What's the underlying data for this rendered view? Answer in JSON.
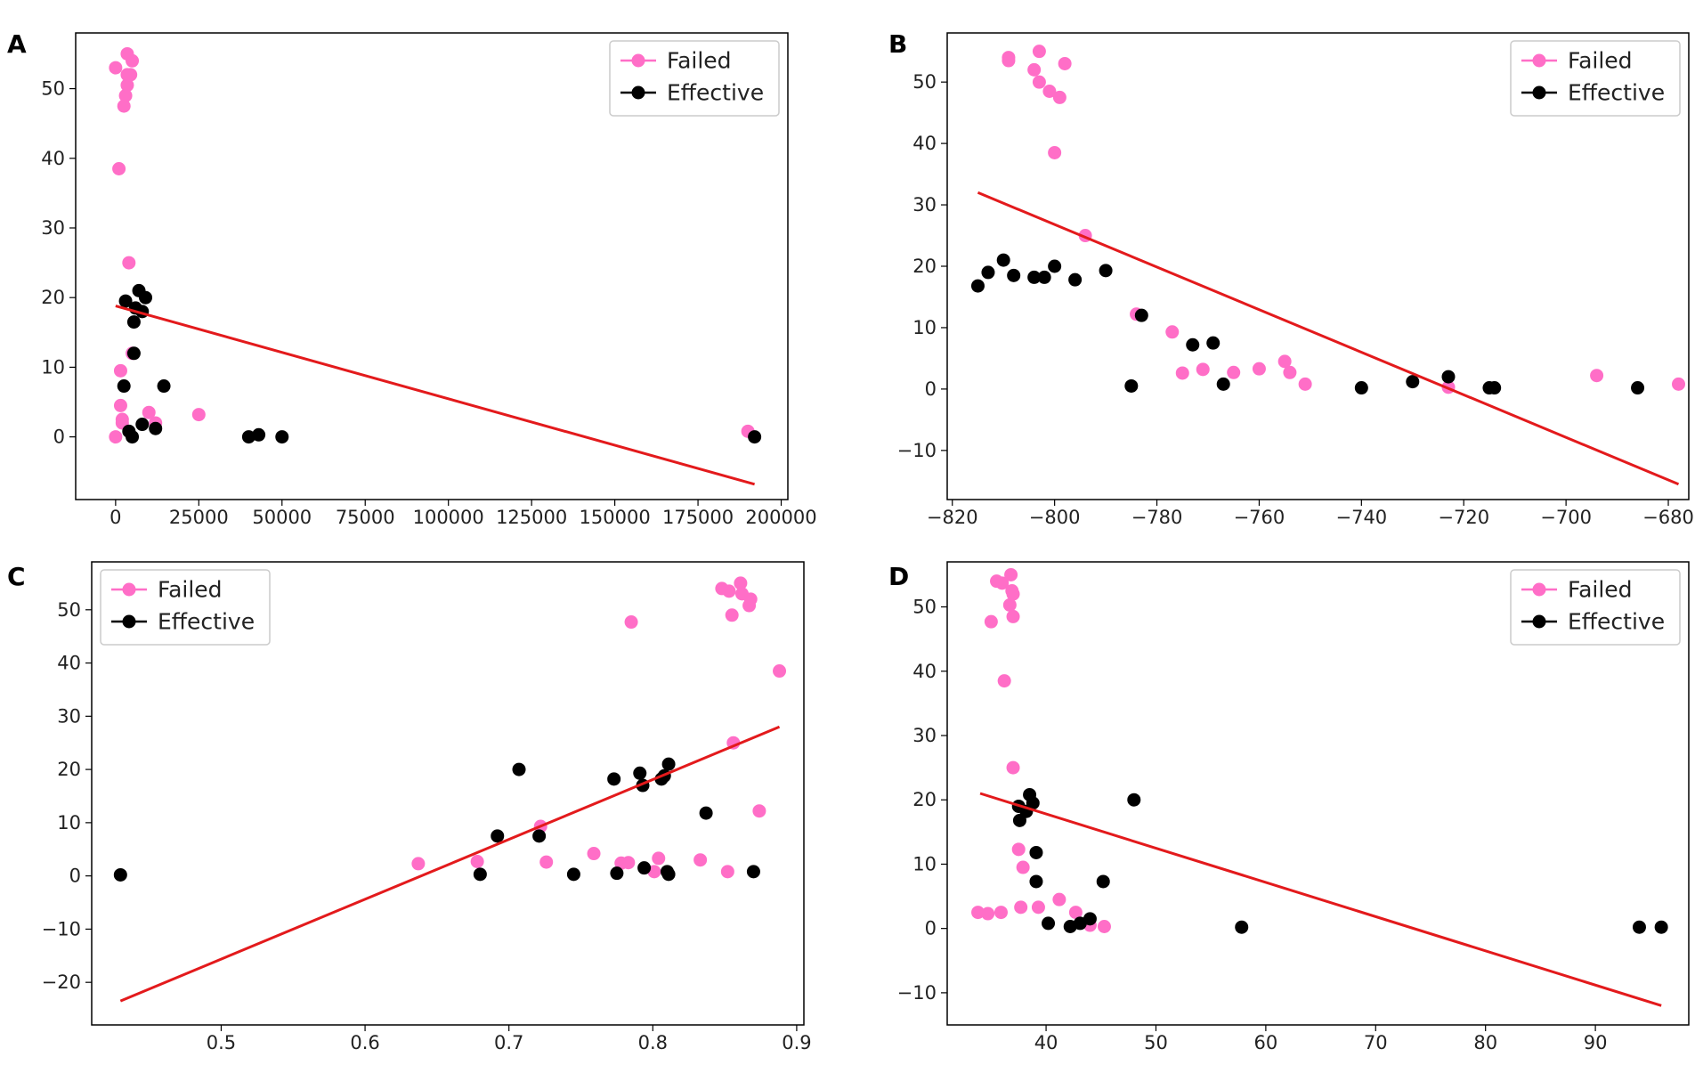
{
  "colors": {
    "failed": "#ff6ec7",
    "effective": "#000000",
    "fit": "#e31a1c"
  },
  "chart_data": [
    {
      "panel": "A",
      "type": "scatter",
      "legend": {
        "entries": [
          "Failed",
          "Effective"
        ],
        "placement": "top-right"
      },
      "xlim": [
        -12000,
        202000
      ],
      "ylim": [
        -9,
        58
      ],
      "xticks": [
        0,
        25000,
        50000,
        75000,
        100000,
        125000,
        150000,
        175000,
        200000
      ],
      "xtick_labels": [
        "0",
        "25000",
        "50000",
        "75000",
        "100000",
        "125000",
        "150000",
        "175000",
        "200000"
      ],
      "yticks": [
        0,
        10,
        20,
        30,
        40,
        50
      ],
      "ytick_labels": [
        "0",
        "10",
        "20",
        "30",
        "40",
        "50"
      ],
      "series": [
        {
          "name": "Failed",
          "points": [
            [
              0,
              53
            ],
            [
              1000,
              38.5
            ],
            [
              2500,
              47.5
            ],
            [
              3000,
              49
            ],
            [
              3500,
              50.5
            ],
            [
              3500,
              52
            ],
            [
              3500,
              55
            ],
            [
              4500,
              52
            ],
            [
              5000,
              54
            ],
            [
              4000,
              25
            ],
            [
              1500,
              9.5
            ],
            [
              1500,
              4.5
            ],
            [
              2000,
              2.5
            ],
            [
              0,
              0
            ],
            [
              2000,
              2
            ],
            [
              5000,
              12
            ],
            [
              10000,
              3.5
            ],
            [
              12000,
              2
            ],
            [
              25000,
              3.2
            ],
            [
              190000,
              0.8
            ]
          ]
        },
        {
          "name": "Effective",
          "points": [
            [
              3000,
              19.5
            ],
            [
              7000,
              21
            ],
            [
              9000,
              20
            ],
            [
              8000,
              18
            ],
            [
              6000,
              18.5
            ],
            [
              5500,
              16.5
            ],
            [
              2500,
              7.3
            ],
            [
              14500,
              7.3
            ],
            [
              5500,
              12
            ],
            [
              8000,
              1.8
            ],
            [
              4000,
              0.8
            ],
            [
              5000,
              0
            ],
            [
              12000,
              1.2
            ],
            [
              40000,
              0
            ],
            [
              43000,
              0.3
            ],
            [
              50000,
              0
            ],
            [
              192000,
              0
            ]
          ]
        }
      ],
      "fit_line": {
        "x": [
          0,
          192000
        ],
        "y": [
          18.8,
          -6.8
        ]
      }
    },
    {
      "panel": "B",
      "type": "scatter",
      "legend": {
        "entries": [
          "Failed",
          "Effective"
        ],
        "placement": "top-right"
      },
      "xlim": [
        -821,
        -676
      ],
      "ylim": [
        -18,
        58
      ],
      "xticks": [
        -820,
        -800,
        -780,
        -760,
        -740,
        -720,
        -700,
        -680
      ],
      "xtick_labels": [
        "−820",
        "−800",
        "−780",
        "−760",
        "−740",
        "−720",
        "−700",
        "−680"
      ],
      "yticks": [
        -10,
        0,
        10,
        20,
        30,
        40,
        50
      ],
      "ytick_labels": [
        "−10",
        "0",
        "10",
        "20",
        "30",
        "40",
        "50"
      ],
      "series": [
        {
          "name": "Failed",
          "points": [
            [
              -809,
              54
            ],
            [
              -809,
              53.5
            ],
            [
              -803,
              55
            ],
            [
              -804,
              52
            ],
            [
              -803,
              50
            ],
            [
              -801,
              48.5
            ],
            [
              -799,
              47.5
            ],
            [
              -798,
              53
            ],
            [
              -800,
              38.5
            ],
            [
              -794,
              25
            ],
            [
              -784,
              12.2
            ],
            [
              -777,
              9.3
            ],
            [
              -775,
              2.6
            ],
            [
              -771,
              3.2
            ],
            [
              -765,
              2.7
            ],
            [
              -760,
              3.3
            ],
            [
              -755,
              4.5
            ],
            [
              -754,
              2.7
            ],
            [
              -751,
              0.8
            ],
            [
              -723,
              0.3
            ],
            [
              -694,
              2.2
            ],
            [
              -678,
              0.8
            ]
          ]
        },
        {
          "name": "Effective",
          "points": [
            [
              -815,
              16.8
            ],
            [
              -813,
              19
            ],
            [
              -810,
              21
            ],
            [
              -808,
              18.5
            ],
            [
              -804,
              18.2
            ],
            [
              -802,
              18.2
            ],
            [
              -800,
              20
            ],
            [
              -796,
              17.8
            ],
            [
              -790,
              19.3
            ],
            [
              -783,
              12
            ],
            [
              -785,
              0.5
            ],
            [
              -773,
              7.2
            ],
            [
              -769,
              7.5
            ],
            [
              -767,
              0.8
            ],
            [
              -740,
              0.2
            ],
            [
              -730,
              1.2
            ],
            [
              -723,
              2
            ],
            [
              -715,
              0.2
            ],
            [
              -714,
              0.2
            ],
            [
              -686,
              0.2
            ]
          ]
        }
      ],
      "fit_line": {
        "x": [
          -815,
          -678
        ],
        "y": [
          32,
          -15.5
        ]
      }
    },
    {
      "panel": "C",
      "type": "scatter",
      "legend": {
        "entries": [
          "Failed",
          "Effective"
        ],
        "placement": "top-left"
      },
      "xlim": [
        0.41,
        0.905
      ],
      "ylim": [
        -28,
        59
      ],
      "xticks": [
        0.5,
        0.6,
        0.7,
        0.8,
        0.9
      ],
      "xtick_labels": [
        "0.5",
        "0.6",
        "0.7",
        "0.8",
        "0.9"
      ],
      "yticks": [
        -20,
        -10,
        0,
        10,
        20,
        30,
        40,
        50
      ],
      "ytick_labels": [
        "−20",
        "−10",
        "0",
        "10",
        "20",
        "30",
        "40",
        "50"
      ],
      "series": [
        {
          "name": "Failed",
          "points": [
            [
              0.848,
              54
            ],
            [
              0.853,
              53.5
            ],
            [
              0.861,
              55
            ],
            [
              0.862,
              53
            ],
            [
              0.867,
              50.8
            ],
            [
              0.868,
              52
            ],
            [
              0.855,
              49
            ],
            [
              0.785,
              47.7
            ],
            [
              0.888,
              38.5
            ],
            [
              0.856,
              25
            ],
            [
              0.874,
              12.2
            ],
            [
              0.637,
              2.3
            ],
            [
              0.678,
              2.7
            ],
            [
              0.722,
              9.3
            ],
            [
              0.726,
              2.6
            ],
            [
              0.759,
              4.2
            ],
            [
              0.778,
              2.4
            ],
            [
              0.783,
              2.5
            ],
            [
              0.804,
              3.3
            ],
            [
              0.801,
              0.8
            ],
            [
              0.833,
              3
            ],
            [
              0.852,
              0.8
            ]
          ]
        },
        {
          "name": "Effective",
          "points": [
            [
              0.43,
              0.2
            ],
            [
              0.68,
              0.3
            ],
            [
              0.692,
              7.5
            ],
            [
              0.707,
              20
            ],
            [
              0.721,
              7.5
            ],
            [
              0.745,
              0.3
            ],
            [
              0.773,
              18.2
            ],
            [
              0.775,
              0.5
            ],
            [
              0.791,
              19.3
            ],
            [
              0.793,
              17
            ],
            [
              0.794,
              1.5
            ],
            [
              0.806,
              18.2
            ],
            [
              0.808,
              18.8
            ],
            [
              0.811,
              21
            ],
            [
              0.81,
              0.8
            ],
            [
              0.811,
              0.3
            ],
            [
              0.837,
              11.8
            ],
            [
              0.87,
              0.8
            ]
          ]
        }
      ],
      "fit_line": {
        "x": [
          0.43,
          0.888
        ],
        "y": [
          -23.5,
          28
        ]
      }
    },
    {
      "panel": "D",
      "type": "scatter",
      "legend": {
        "entries": [
          "Failed",
          "Effective"
        ],
        "placement": "top-right"
      },
      "xlim": [
        31,
        98.5
      ],
      "ylim": [
        -15,
        57
      ],
      "xticks": [
        40,
        50,
        60,
        70,
        80,
        90
      ],
      "xtick_labels": [
        "40",
        "50",
        "60",
        "70",
        "80",
        "90"
      ],
      "yticks": [
        -10,
        0,
        10,
        20,
        30,
        40,
        50
      ],
      "ytick_labels": [
        "−10",
        "0",
        "10",
        "20",
        "30",
        "40",
        "50"
      ],
      "series": [
        {
          "name": "Failed",
          "points": [
            [
              35.5,
              54
            ],
            [
              36,
              53.7
            ],
            [
              36.8,
              55
            ],
            [
              36.9,
              52.5
            ],
            [
              37,
              52
            ],
            [
              36.7,
              50.3
            ],
            [
              37,
              48.5
            ],
            [
              35,
              47.7
            ],
            [
              36.2,
              38.5
            ],
            [
              37,
              25
            ],
            [
              37.5,
              12.3
            ],
            [
              37.9,
              9.5
            ],
            [
              37.7,
              3.3
            ],
            [
              39.3,
              3.3
            ],
            [
              33.8,
              2.5
            ],
            [
              34.7,
              2.3
            ],
            [
              35.9,
              2.5
            ],
            [
              41.2,
              4.5
            ],
            [
              42.7,
              2.5
            ],
            [
              44,
              0.5
            ],
            [
              45.3,
              0.3
            ]
          ]
        },
        {
          "name": "Effective",
          "points": [
            [
              37.5,
              19
            ],
            [
              38.5,
              20.8
            ],
            [
              38.8,
              19.5
            ],
            [
              38.2,
              18.2
            ],
            [
              37.6,
              16.8
            ],
            [
              39.1,
              11.8
            ],
            [
              39.1,
              7.3
            ],
            [
              45.2,
              7.3
            ],
            [
              48,
              20
            ],
            [
              40.2,
              0.8
            ],
            [
              42.2,
              0.3
            ],
            [
              43.1,
              0.8
            ],
            [
              44,
              1.5
            ],
            [
              57.8,
              0.2
            ],
            [
              94,
              0.2
            ],
            [
              96,
              0.2
            ]
          ]
        }
      ],
      "fit_line": {
        "x": [
          34,
          96
        ],
        "y": [
          21,
          -12
        ]
      }
    }
  ]
}
